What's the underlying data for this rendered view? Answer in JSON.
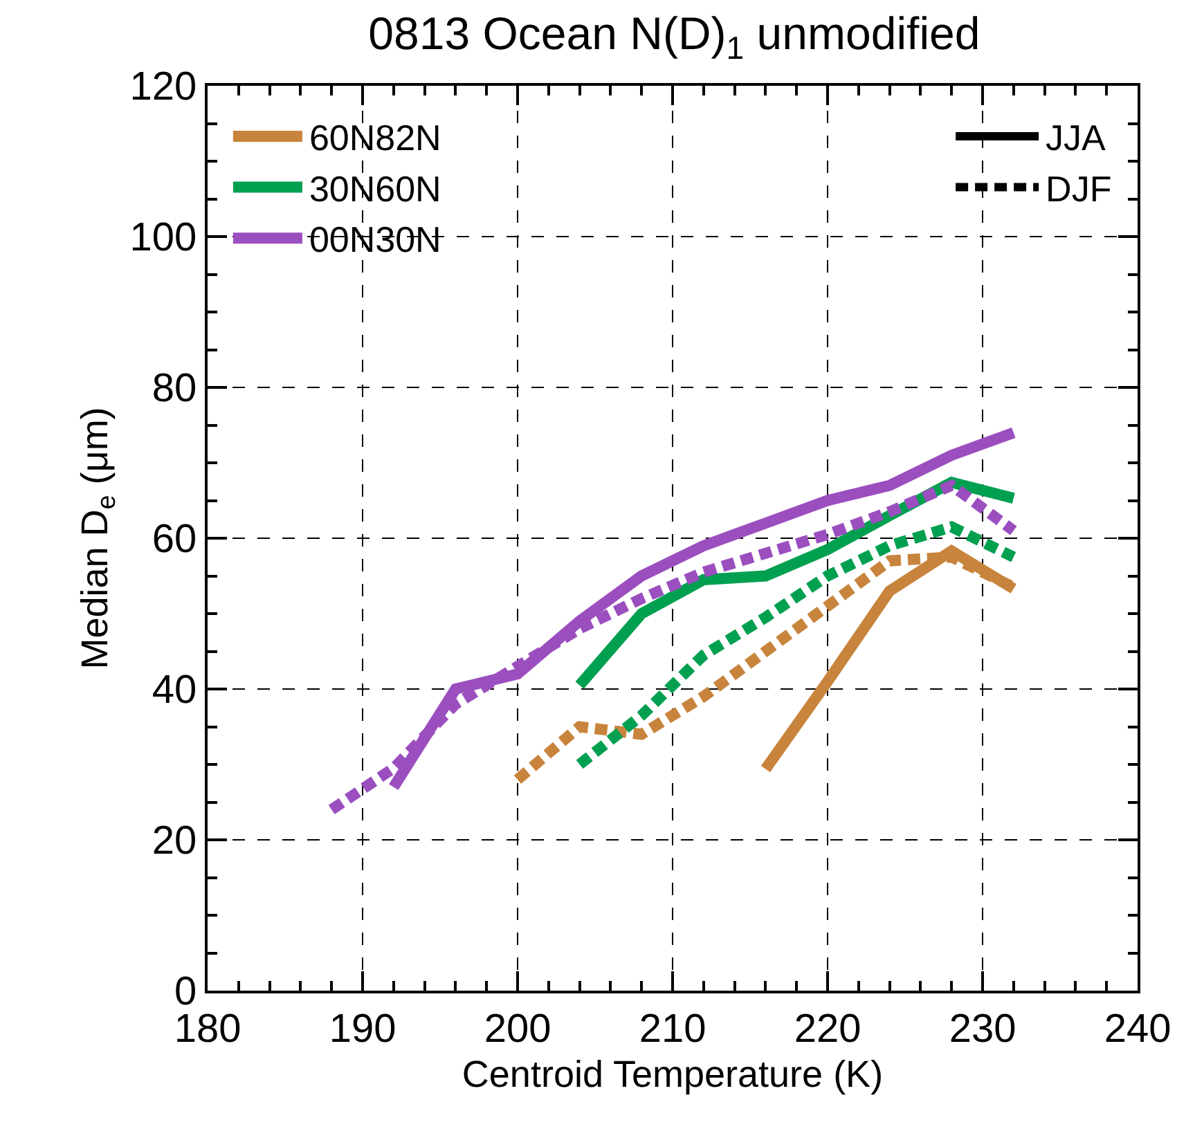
{
  "chart_data": {
    "type": "line",
    "title": "0813 Ocean N(D)$_{1}$ unmodified",
    "xlabel": "Centroid Temperature (K)",
    "ylabel": "Median D$_{e}$ (μm)",
    "x": [
      188,
      192,
      196,
      200,
      204,
      208,
      212,
      216,
      220,
      224,
      228,
      232
    ],
    "series": [
      {
        "name": "60N82N",
        "color": "#c8843c",
        "line_style": "solid",
        "values": [
          null,
          null,
          null,
          null,
          null,
          null,
          null,
          29.4,
          41,
          53,
          58.3,
          53.3
        ]
      },
      {
        "name": "30N60N",
        "color": "#00a050",
        "line_style": "solid",
        "values": [
          null,
          null,
          null,
          null,
          40.5,
          50,
          54.5,
          55,
          58.5,
          63,
          67.4,
          65.3
        ]
      },
      {
        "name": "00N30N",
        "color": "#9b4fbf",
        "line_style": "solid",
        "values": [
          null,
          27,
          40,
          42,
          49,
          55,
          59,
          62,
          65,
          67,
          71,
          74
        ]
      },
      {
        "color": "#c8843c",
        "line_style": "dashed",
        "values": [
          null,
          null,
          null,
          28,
          35,
          34,
          39,
          45,
          51,
          57,
          57.5,
          53.5
        ]
      },
      {
        "color": "#00a050",
        "line_style": "dashed",
        "values": [
          null,
          null,
          null,
          null,
          30,
          36.5,
          44.5,
          49.5,
          55,
          59,
          61.5,
          57.5
        ]
      },
      {
        "color": "#9b4fbf",
        "line_style": "dashed",
        "values": [
          24,
          29.5,
          38,
          43,
          48,
          52,
          55.5,
          58,
          60.5,
          63.5,
          67,
          61
        ]
      }
    ],
    "annotations": [
      "JJA",
      "DJF"
    ],
    "xlim": [
      180,
      240
    ],
    "xticks": [
      180,
      190,
      200,
      210,
      220,
      230,
      240
    ],
    "ylim": [
      0,
      120
    ],
    "yticks": [
      0,
      20,
      40,
      60,
      80,
      100,
      120
    ],
    "grid": true,
    "legend": "top left",
    "marker": "none"
  }
}
